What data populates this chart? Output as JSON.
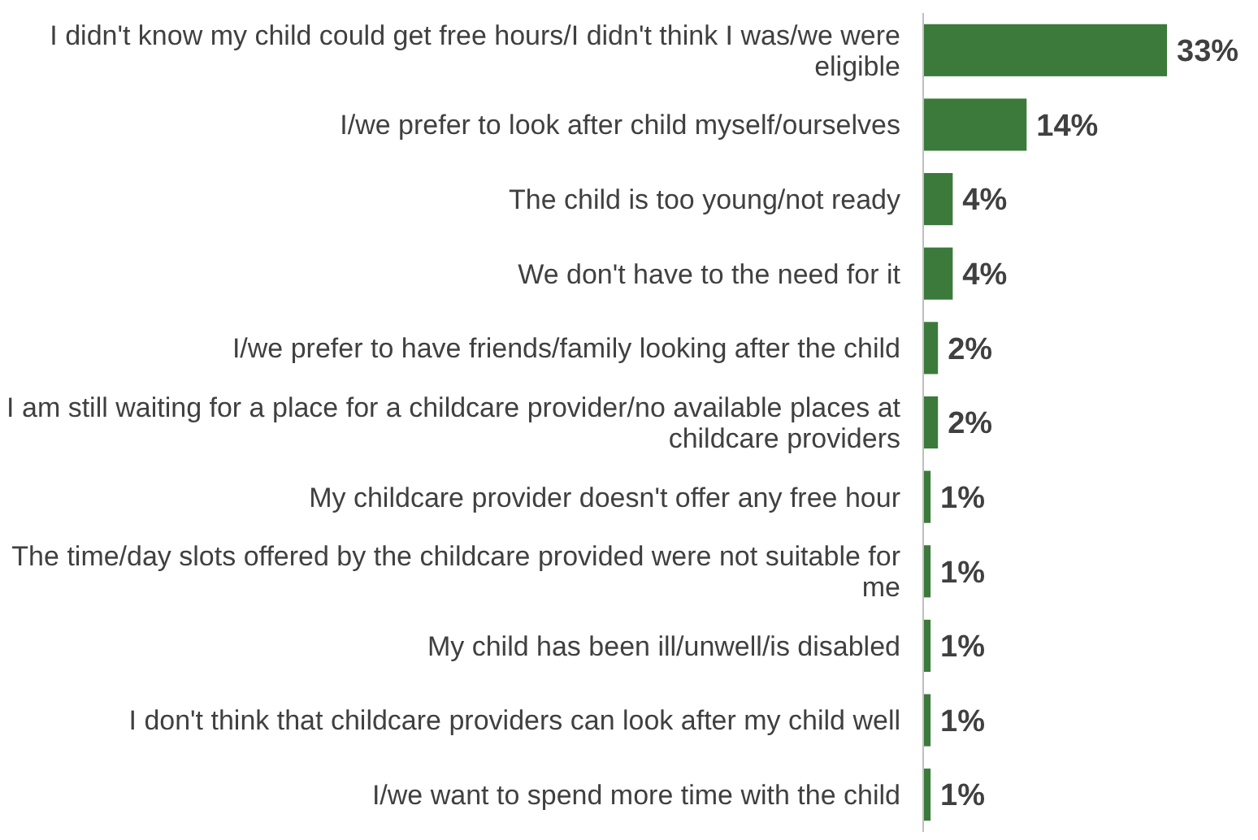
{
  "chart_data": {
    "type": "bar",
    "orientation": "horizontal",
    "categories": [
      "I didn't know my child could get free hours/I didn't think I was/we were eligible",
      "I/we prefer to look after child myself/ourselves",
      "The child is too young/not ready",
      "We don't have to the need for it",
      "I/we prefer to have friends/family looking after the child",
      "I am still waiting for a place for a childcare provider/no available places at childcare providers",
      "My childcare provider doesn't offer any free hour",
      "The time/day slots offered by the childcare provided were not suitable for me",
      "My child has been ill/unwell/is disabled",
      "I don't think that childcare providers can look after my child well",
      "I/we want to spend more time with the child"
    ],
    "values": [
      33,
      14,
      4,
      4,
      2,
      2,
      1,
      1,
      1,
      1,
      1
    ],
    "value_labels": [
      "33%",
      "14%",
      "4%",
      "4%",
      "2%",
      "2%",
      "1%",
      "1%",
      "1%",
      "1%",
      "1%"
    ],
    "color": "#3b7a3b"
  }
}
